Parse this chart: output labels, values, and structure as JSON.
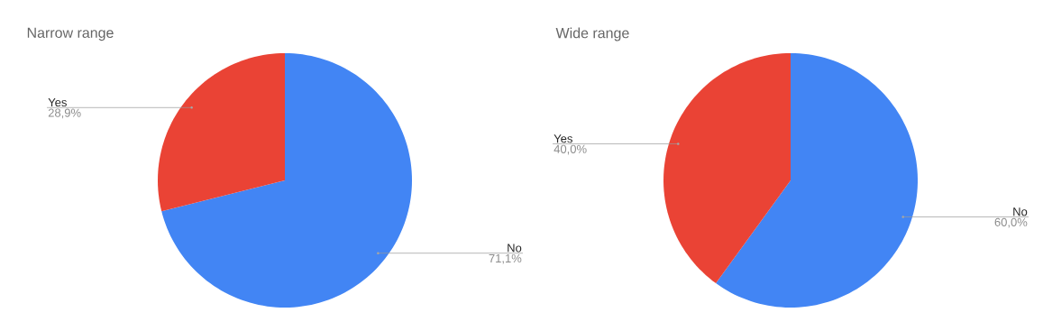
{
  "chart_data": [
    {
      "type": "pie",
      "title": "Narrow range",
      "categories": [
        "No",
        "Yes"
      ],
      "values": [
        71.1,
        28.9
      ],
      "colors": [
        "#4285f4",
        "#ea4335"
      ],
      "value_labels": [
        "71,1%",
        "28,9%"
      ]
    },
    {
      "type": "pie",
      "title": "Wide range",
      "categories": [
        "No",
        "Yes"
      ],
      "values": [
        60.0,
        40.0
      ],
      "colors": [
        "#4285f4",
        "#ea4335"
      ],
      "value_labels": [
        "60,0%",
        "40,0%"
      ]
    }
  ]
}
